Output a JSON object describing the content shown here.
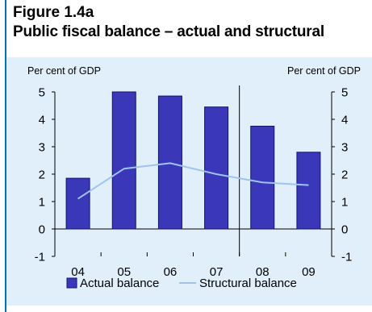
{
  "figure": {
    "label": "Figure 1.4a",
    "title": "Public fiscal balance – actual and structural"
  },
  "colors": {
    "accent_rule": "#0b6fa8",
    "panel_background": "#e0effa",
    "bar_fill": "#3a37b8",
    "bar_stroke": "#15126e",
    "line_color": "#9ec4ee"
  },
  "chart_data": {
    "type": "bar",
    "categories": [
      "04",
      "05",
      "06",
      "07",
      "08",
      "09"
    ],
    "series": [
      {
        "name": "Actual balance",
        "type": "bar",
        "values": [
          1.85,
          5.0,
          4.85,
          4.45,
          3.75,
          2.8
        ]
      },
      {
        "name": "Structural balance",
        "type": "line",
        "values": [
          1.1,
          2.2,
          2.4,
          2.0,
          1.7,
          1.6
        ]
      }
    ],
    "ylabel_left": "Per cent of GDP",
    "ylabel_right": "Per cent of GDP",
    "ylim": [
      -1,
      5
    ],
    "yticks": [
      5,
      4,
      3,
      2,
      1,
      0,
      -1
    ],
    "ytick_labels": [
      "5",
      "4",
      "3",
      "2",
      "1",
      "0",
      "-1"
    ],
    "divider_between": [
      "07",
      "08"
    ],
    "grid": false,
    "legend_position": "bottom"
  }
}
